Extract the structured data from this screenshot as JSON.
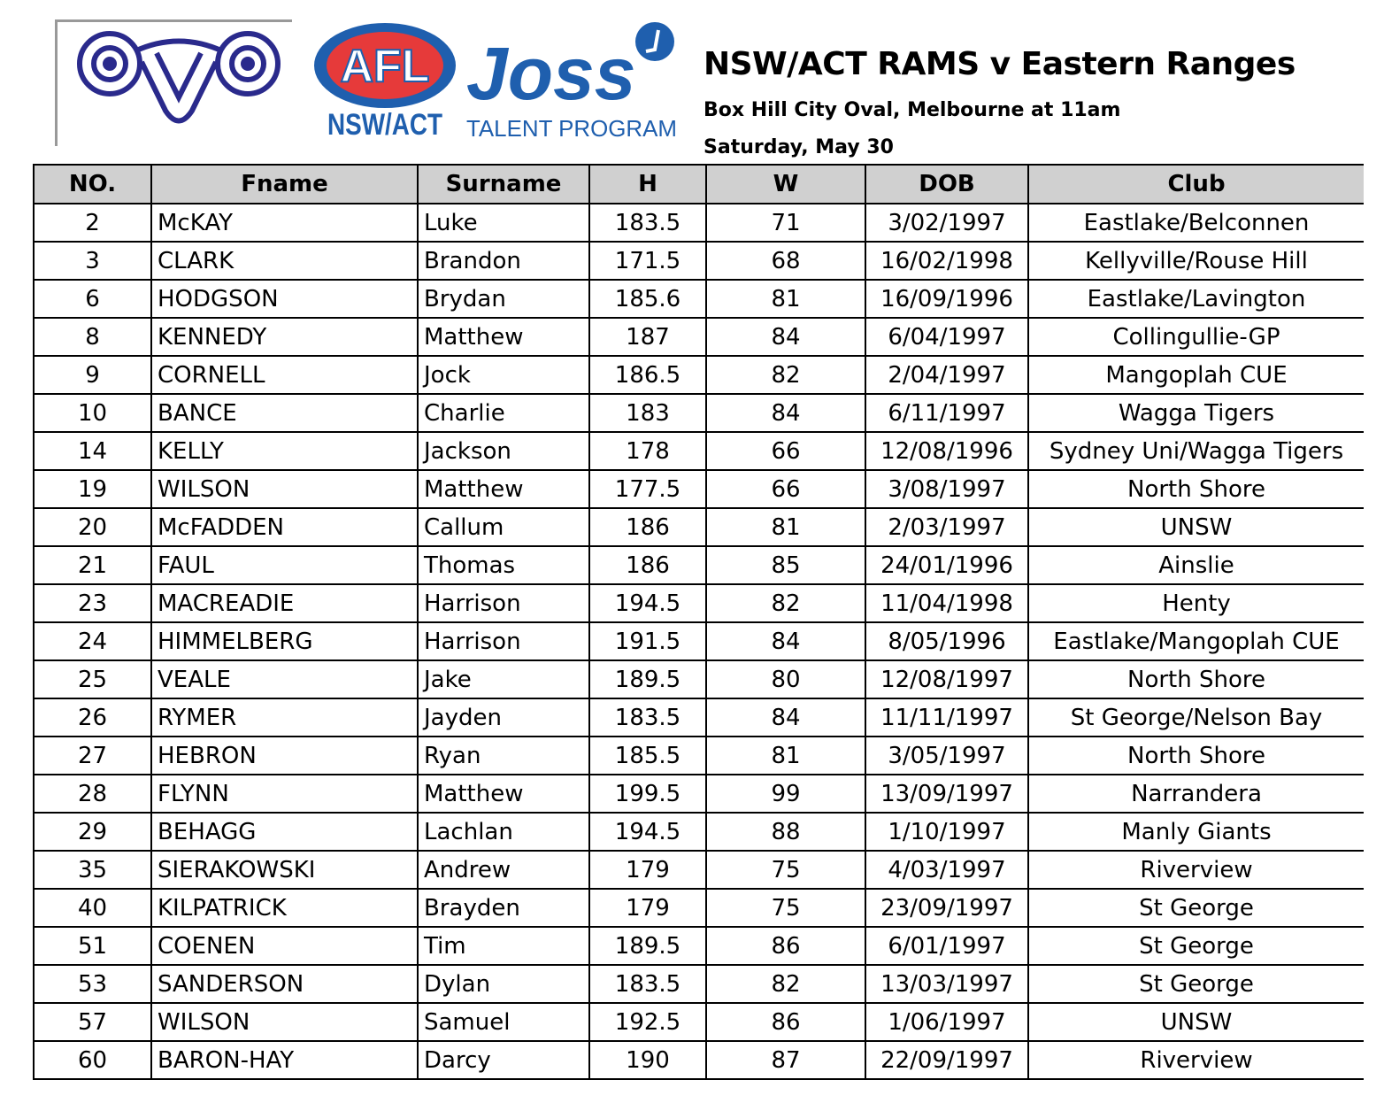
{
  "header": {
    "logos": {
      "rams": "RAMS ram logo",
      "afl": "AFL NSW/ACT",
      "joss": "Joss TALENT PROGRAM"
    },
    "title": "NSW/ACT RAMS v Eastern Ranges",
    "venue": "Box Hill  City Oval, Melbourne at 11am",
    "date": "Saturday, May 30"
  },
  "table": {
    "columns": [
      "NO.",
      "Fname",
      "Surname",
      "H",
      "W",
      "DOB",
      "Club"
    ],
    "rows": [
      [
        "2",
        "McKAY",
        "Luke",
        "183.5",
        "71",
        "3/02/1997",
        "Eastlake/Belconnen"
      ],
      [
        "3",
        "CLARK",
        "Brandon",
        "171.5",
        "68",
        "16/02/1998",
        "Kellyville/Rouse Hill"
      ],
      [
        "6",
        "HODGSON",
        "Brydan",
        "185.6",
        "81",
        "16/09/1996",
        "Eastlake/Lavington"
      ],
      [
        "8",
        "KENNEDY",
        "Matthew",
        "187",
        "84",
        "6/04/1997",
        "Collingullie-GP"
      ],
      [
        "9",
        "CORNELL",
        "Jock",
        "186.5",
        "82",
        "2/04/1997",
        "Mangoplah CUE"
      ],
      [
        "10",
        "BANCE",
        "Charlie",
        "183",
        "84",
        "6/11/1997",
        "Wagga Tigers"
      ],
      [
        "14",
        "KELLY",
        "Jackson",
        "178",
        "66",
        "12/08/1996",
        "Sydney Uni/Wagga Tigers"
      ],
      [
        "19",
        "WILSON",
        "Matthew",
        "177.5",
        "66",
        "3/08/1997",
        "North Shore"
      ],
      [
        "20",
        "McFADDEN",
        "Callum",
        "186",
        "81",
        "2/03/1997",
        "UNSW"
      ],
      [
        "21",
        "FAUL",
        "Thomas",
        "186",
        "85",
        "24/01/1996",
        "Ainslie"
      ],
      [
        "23",
        "MACREADIE",
        "Harrison",
        "194.5",
        "82",
        "11/04/1998",
        "Henty"
      ],
      [
        "24",
        "HIMMELBERG",
        "Harrison",
        "191.5",
        "84",
        "8/05/1996",
        "Eastlake/Mangoplah CUE"
      ],
      [
        "25",
        "VEALE",
        "Jake",
        "189.5",
        "80",
        "12/08/1997",
        "North Shore"
      ],
      [
        "26",
        "RYMER",
        "Jayden",
        "183.5",
        "84",
        "11/11/1997",
        "St George/Nelson Bay"
      ],
      [
        "27",
        "HEBRON",
        "Ryan",
        "185.5",
        "81",
        "3/05/1997",
        "North Shore"
      ],
      [
        "28",
        "FLYNN",
        "Matthew",
        "199.5",
        "99",
        "13/09/1997",
        "Narrandera"
      ],
      [
        "29",
        "BEHAGG",
        "Lachlan",
        "194.5",
        "88",
        "1/10/1997",
        "Manly Giants"
      ],
      [
        "35",
        "SIERAKOWSKI",
        "Andrew",
        "179",
        "75",
        "4/03/1997",
        "Riverview"
      ],
      [
        "40",
        "KILPATRICK",
        "Brayden",
        "179",
        "75",
        "23/09/1997",
        "St George"
      ],
      [
        "51",
        "COENEN",
        "Tim",
        "189.5",
        "86",
        "6/01/1997",
        "St George"
      ],
      [
        "53",
        "SANDERSON",
        "Dylan",
        "183.5",
        "82",
        "13/03/1997",
        "St George"
      ],
      [
        "57",
        "WILSON",
        "Samuel",
        "192.5",
        "86",
        "1/06/1997",
        "UNSW"
      ],
      [
        "60",
        "BARON-HAY",
        "Darcy",
        "190",
        "87",
        "22/09/1997",
        "Riverview"
      ]
    ]
  },
  "colors": {
    "header_bg": "#d0d0d0",
    "logo_blue": "#1f5fae",
    "ram_navy": "#2a2a8c",
    "afl_red": "#e63a3a"
  }
}
